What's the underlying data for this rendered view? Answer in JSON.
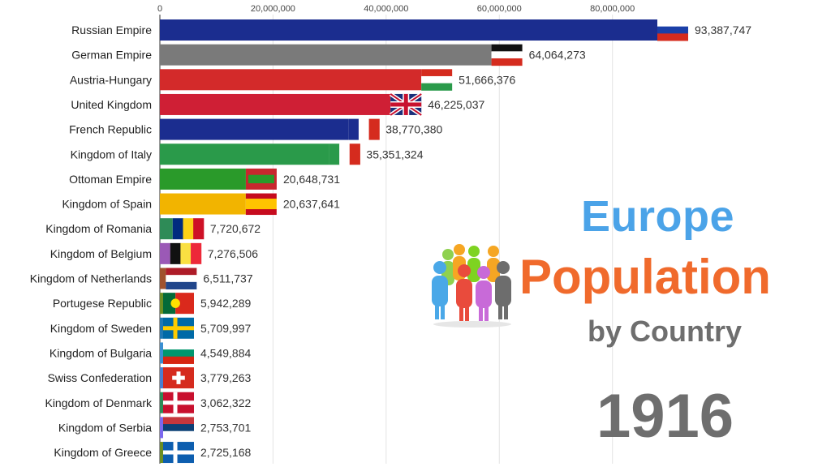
{
  "title": {
    "line1": "Europe",
    "line2": "Population",
    "line3": "by Country"
  },
  "year": "1916",
  "colors": {
    "title_blue": "#4ba3e8",
    "title_orange": "#f06a2c",
    "title_gray": "#6e6e6e"
  },
  "chart_data": {
    "type": "bar",
    "orientation": "horizontal",
    "title": "Europe Population by Country",
    "subtitle": "1916",
    "xlim": [
      0,
      93387747
    ],
    "xticks": [
      0,
      20000000,
      40000000,
      60000000,
      80000000
    ],
    "xtick_labels": [
      "0",
      "20,000,000",
      "40,000,000",
      "60,000,000",
      "80,000,000"
    ],
    "grid": true,
    "categories": [
      "Russian Empire",
      "German Empire",
      "Austria-Hungary",
      "United Kingdom",
      "French Republic",
      "Kingdom of Italy",
      "Ottoman Empire",
      "Kingdom of Spain",
      "Kingdom of Romania",
      "Kingdom of Belgium",
      "Kingdom of Netherlands",
      "Portugese Republic",
      "Kingdom of Sweden",
      "Kingdom of Bulgaria",
      "Swiss Confederation",
      "Kingdom of Denmark",
      "Kingdom of Serbia",
      "Kingdom of Greece"
    ],
    "values": [
      93387747,
      64064273,
      51666376,
      46225037,
      38770380,
      35351324,
      20648731,
      20637641,
      7720672,
      7276506,
      6511737,
      5942289,
      5709997,
      4549884,
      3779263,
      3062322,
      2753701,
      2725168
    ],
    "value_labels": [
      "93,387,747",
      "64,064,273",
      "51,666,376",
      "46,225,037",
      "38,770,380",
      "35,351,324",
      "20,648,731",
      "20,637,641",
      "7,720,672",
      "7,276,506",
      "6,511,737",
      "5,942,289",
      "5,709,997",
      "4,549,884",
      "3,779,263",
      "3,062,322",
      "2,753,701",
      "2,725,168"
    ],
    "bar_colors": [
      "#1b2d8f",
      "#7a7a7a",
      "#d32a2a",
      "#cf1f35",
      "#1b2d8f",
      "#2a9a4a",
      "#2a9a2a",
      "#f2b400",
      "#2e8b57",
      "#9b59b6",
      "#a0522d",
      "#6b8e23",
      "#1f78b4",
      "#3b8fd1",
      "#4a7fd0",
      "#2e8b57",
      "#7b68ee",
      "#6b8e23"
    ],
    "flags": [
      {
        "type": "h",
        "colors": [
          "#ffffff",
          "#1b3fa8",
          "#d52b1e"
        ]
      },
      {
        "type": "h",
        "colors": [
          "#111111",
          "#ffffff",
          "#d52b1e"
        ]
      },
      {
        "type": "h",
        "colors": [
          "#d52b1e",
          "#ffffff",
          "#2a9a4a"
        ]
      },
      {
        "type": "uk",
        "colors": [
          "#1b2f7a",
          "#ffffff",
          "#c8102e"
        ]
      },
      {
        "type": "v",
        "colors": [
          "#1b2d8f",
          "#ffffff",
          "#d52b1e"
        ]
      },
      {
        "type": "v",
        "colors": [
          "#2a9a4a",
          "#ffffff",
          "#d52b1e"
        ]
      },
      {
        "type": "solid",
        "colors": [
          "#c8272e"
        ]
      },
      {
        "type": "h3",
        "colors": [
          "#c60b1e",
          "#ffc400",
          "#c60b1e"
        ]
      },
      {
        "type": "v",
        "colors": [
          "#002b7f",
          "#fcd116",
          "#ce1126"
        ]
      },
      {
        "type": "v",
        "colors": [
          "#111111",
          "#fae042",
          "#ed2939"
        ]
      },
      {
        "type": "h",
        "colors": [
          "#ae1c28",
          "#ffffff",
          "#21468b"
        ]
      },
      {
        "type": "v2",
        "colors": [
          "#046a38",
          "#da291c"
        ]
      },
      {
        "type": "nordic",
        "colors": [
          "#006aa7",
          "#fecc00"
        ]
      },
      {
        "type": "h",
        "colors": [
          "#ffffff",
          "#00966e",
          "#d62612"
        ]
      },
      {
        "type": "swiss",
        "colors": [
          "#d52b1e",
          "#ffffff"
        ]
      },
      {
        "type": "nordic",
        "colors": [
          "#c8102e",
          "#ffffff"
        ]
      },
      {
        "type": "h",
        "colors": [
          "#c6363c",
          "#0c4076",
          "#ffffff"
        ]
      },
      {
        "type": "nordic",
        "colors": [
          "#0d5eaf",
          "#ffffff"
        ]
      }
    ]
  }
}
